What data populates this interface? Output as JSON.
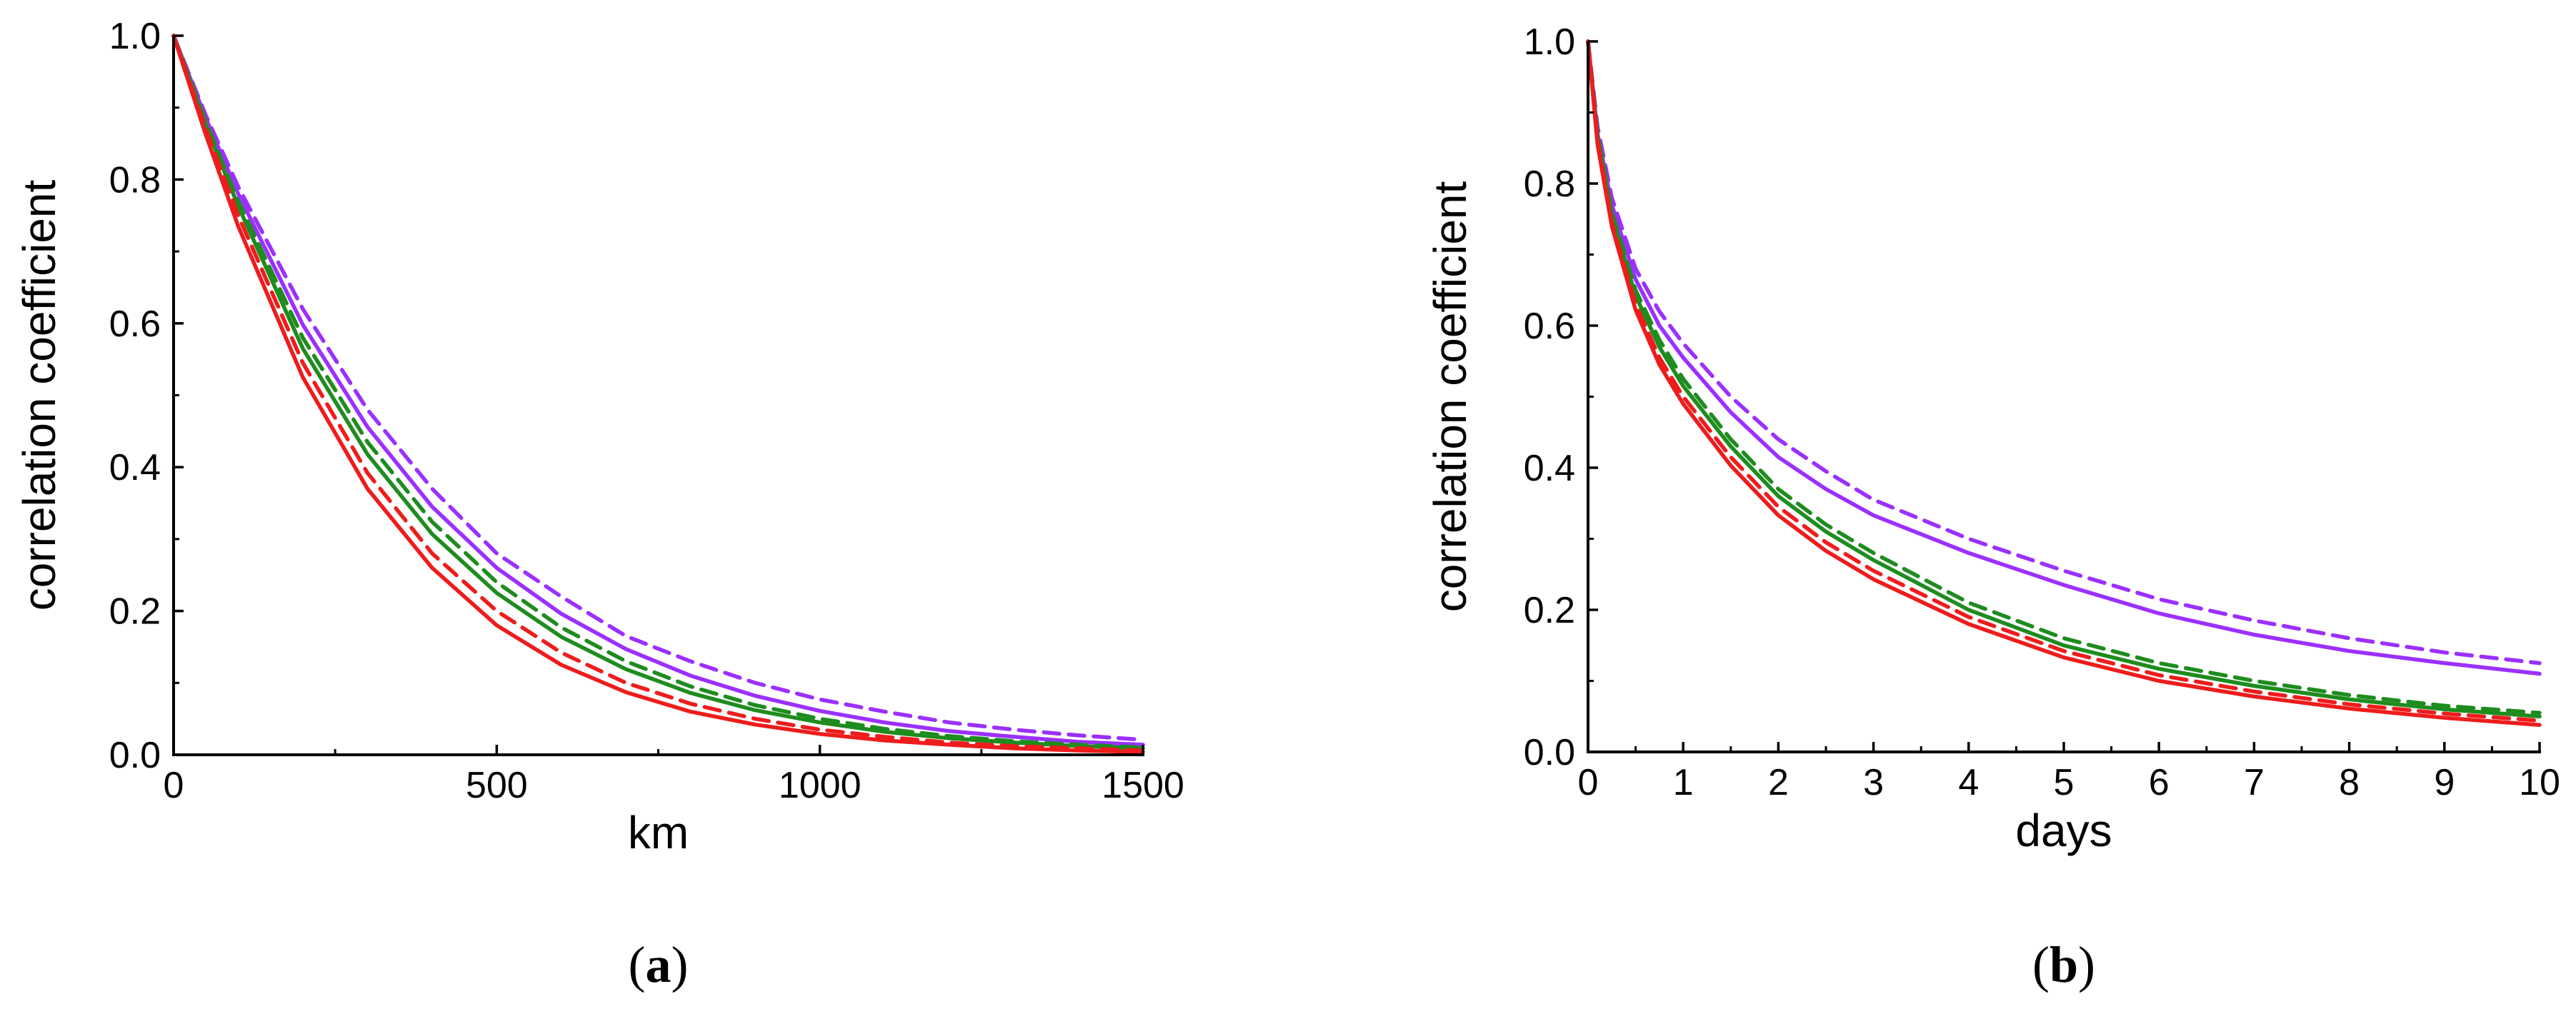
{
  "chart_data": [
    {
      "type": "line",
      "panel_label": "a",
      "xlabel": "km",
      "ylabel": "correlation coefficient",
      "xlim": [
        0,
        1500
      ],
      "ylim": [
        0,
        1.0
      ],
      "x_ticks": [
        0,
        500,
        1000,
        1500
      ],
      "x_tick_labels": [
        "0",
        "500",
        "1000",
        "1500"
      ],
      "y_ticks": [
        0.0,
        0.2,
        0.4,
        0.6,
        0.8,
        1.0
      ],
      "y_tick_labels": [
        "0.0",
        "0.2",
        "0.4",
        "0.6",
        "0.8",
        "1.0"
      ],
      "x": [
        0,
        50,
        100,
        200,
        300,
        400,
        500,
        600,
        700,
        800,
        900,
        1000,
        1100,
        1200,
        1300,
        1400,
        1500
      ],
      "series": [
        {
          "name": "purple dashed",
          "color": "#9b30ff",
          "dash": "dashed",
          "values": [
            1.0,
            0.889,
            0.79,
            0.62,
            0.48,
            0.37,
            0.28,
            0.22,
            0.165,
            0.13,
            0.1,
            0.077,
            0.06,
            0.045,
            0.035,
            0.027,
            0.021
          ]
        },
        {
          "name": "purple solid",
          "color": "#9b30ff",
          "dash": "solid",
          "values": [
            1.0,
            0.885,
            0.78,
            0.598,
            0.456,
            0.345,
            0.26,
            0.196,
            0.147,
            0.11,
            0.082,
            0.061,
            0.045,
            0.033,
            0.025,
            0.018,
            0.014
          ]
        },
        {
          "name": "green dashed",
          "color": "#1e8c1e",
          "dash": "dashed",
          "values": [
            1.0,
            0.88,
            0.77,
            0.58,
            0.435,
            0.324,
            0.24,
            0.177,
            0.13,
            0.095,
            0.069,
            0.05,
            0.036,
            0.026,
            0.019,
            0.014,
            0.01
          ]
        },
        {
          "name": "green solid",
          "color": "#1e8c1e",
          "dash": "solid",
          "values": [
            1.0,
            0.875,
            0.763,
            0.565,
            0.418,
            0.307,
            0.225,
            0.164,
            0.119,
            0.086,
            0.062,
            0.045,
            0.032,
            0.023,
            0.017,
            0.012,
            0.009
          ]
        },
        {
          "name": "red dashed",
          "color": "#ee1c1c",
          "dash": "dashed",
          "values": [
            1.0,
            0.87,
            0.75,
            0.545,
            0.392,
            0.28,
            0.2,
            0.142,
            0.1,
            0.071,
            0.05,
            0.035,
            0.025,
            0.017,
            0.012,
            0.009,
            0.006
          ]
        },
        {
          "name": "red solid",
          "color": "#ee1c1c",
          "dash": "solid",
          "values": [
            1.0,
            0.862,
            0.735,
            0.525,
            0.37,
            0.26,
            0.18,
            0.125,
            0.087,
            0.06,
            0.042,
            0.029,
            0.02,
            0.014,
            0.009,
            0.006,
            0.004
          ]
        }
      ]
    },
    {
      "type": "line",
      "panel_label": "b",
      "xlabel": "days",
      "ylabel": "correlation coefficient",
      "xlim": [
        0,
        10
      ],
      "ylim": [
        0,
        1.0
      ],
      "x_ticks": [
        0,
        1,
        2,
        3,
        4,
        5,
        6,
        7,
        8,
        9,
        10
      ],
      "x_tick_labels": [
        "0",
        "1",
        "2",
        "3",
        "4",
        "5",
        "6",
        "7",
        "8",
        "9",
        "10"
      ],
      "y_ticks": [
        0.0,
        0.2,
        0.4,
        0.6,
        0.8,
        1.0
      ],
      "y_tick_labels": [
        "0.0",
        "0.2",
        "0.4",
        "0.6",
        "0.8",
        "1.0"
      ],
      "x": [
        0,
        0.1,
        0.25,
        0.5,
        0.75,
        1,
        1.5,
        2,
        2.5,
        3,
        4,
        5,
        6,
        7,
        8,
        9,
        10
      ],
      "series": [
        {
          "name": "purple dashed",
          "color": "#9b30ff",
          "dash": "dashed",
          "values": [
            1.0,
            0.88,
            0.78,
            0.68,
            0.62,
            0.575,
            0.5,
            0.44,
            0.395,
            0.355,
            0.3,
            0.255,
            0.215,
            0.185,
            0.16,
            0.14,
            0.125
          ]
        },
        {
          "name": "purple solid",
          "color": "#9b30ff",
          "dash": "solid",
          "values": [
            1.0,
            0.87,
            0.77,
            0.665,
            0.6,
            0.555,
            0.478,
            0.415,
            0.37,
            0.333,
            0.28,
            0.235,
            0.195,
            0.165,
            0.142,
            0.125,
            0.11
          ]
        },
        {
          "name": "green dashed",
          "color": "#1e8c1e",
          "dash": "dashed",
          "values": [
            1.0,
            0.87,
            0.76,
            0.65,
            0.58,
            0.525,
            0.44,
            0.37,
            0.32,
            0.28,
            0.21,
            0.16,
            0.125,
            0.1,
            0.08,
            0.065,
            0.055
          ]
        },
        {
          "name": "green solid",
          "color": "#1e8c1e",
          "dash": "solid",
          "values": [
            1.0,
            0.865,
            0.755,
            0.642,
            0.57,
            0.515,
            0.43,
            0.36,
            0.31,
            0.27,
            0.2,
            0.15,
            0.117,
            0.093,
            0.074,
            0.06,
            0.05
          ]
        },
        {
          "name": "red dashed",
          "color": "#ee1c1c",
          "dash": "dashed",
          "values": [
            1.0,
            0.86,
            0.745,
            0.63,
            0.555,
            0.5,
            0.415,
            0.345,
            0.295,
            0.255,
            0.19,
            0.142,
            0.108,
            0.085,
            0.067,
            0.054,
            0.044
          ]
        },
        {
          "name": "red solid",
          "color": "#ee1c1c",
          "dash": "solid",
          "values": [
            1.0,
            0.855,
            0.74,
            0.622,
            0.545,
            0.49,
            0.403,
            0.333,
            0.283,
            0.243,
            0.18,
            0.133,
            0.1,
            0.078,
            0.061,
            0.048,
            0.038
          ]
        }
      ]
    }
  ]
}
